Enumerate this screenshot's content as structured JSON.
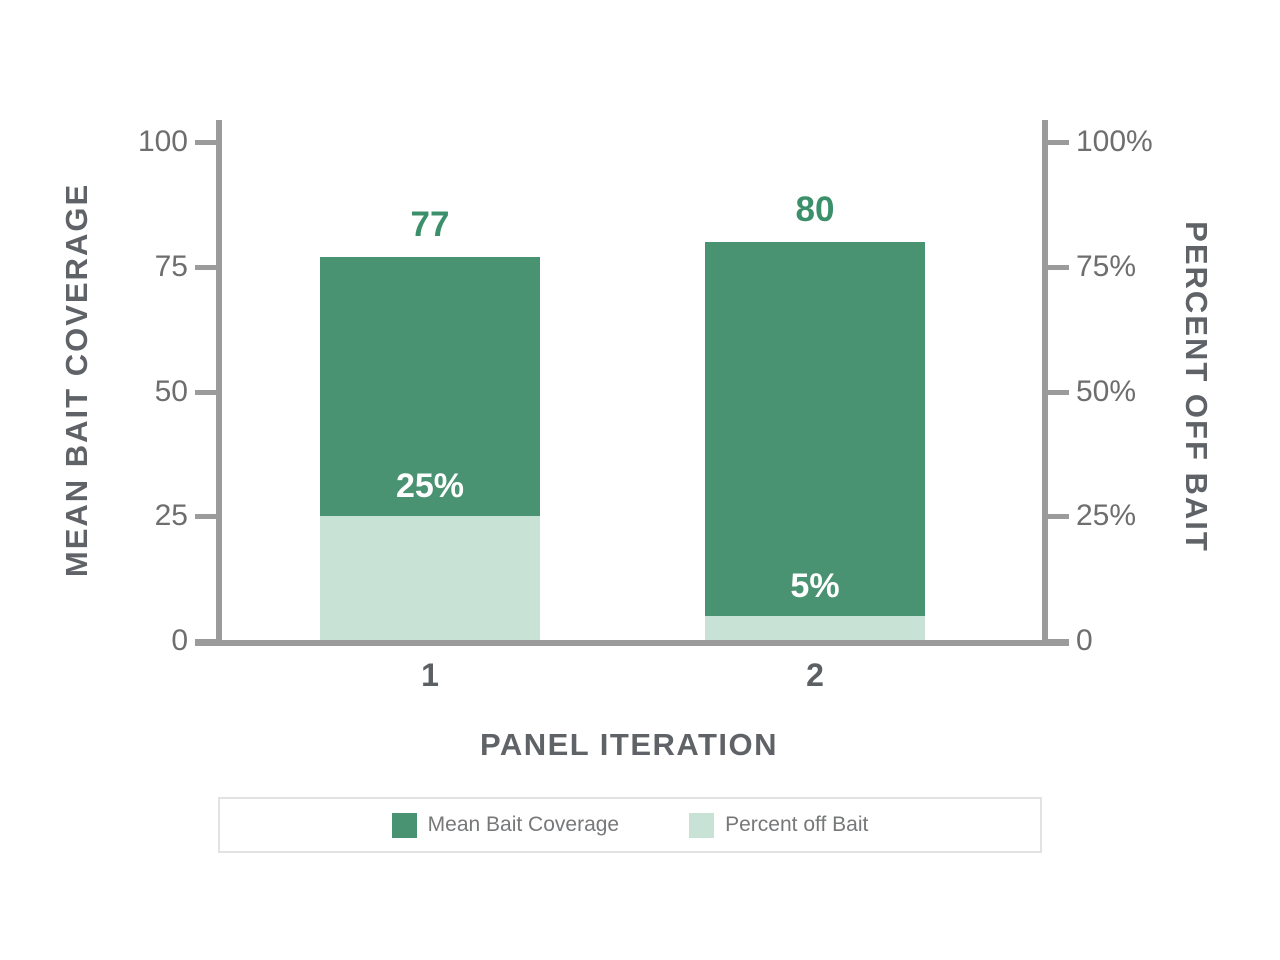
{
  "chart_data": {
    "type": "bar",
    "title": "",
    "categories": [
      "1",
      "2"
    ],
    "series": [
      {
        "name": "Mean Bait Coverage",
        "values": [
          77,
          80
        ],
        "color": "#4a9372",
        "axis": "left"
      },
      {
        "name": "Percent off Bait",
        "values": [
          25,
          5
        ],
        "color": "#c8e3d6",
        "axis": "right"
      }
    ],
    "bar_value_labels": [
      "77",
      "80"
    ],
    "overlay_value_labels": [
      "25%",
      "5%"
    ],
    "left_axis": {
      "title": "MEAN BAIT COVERAGE",
      "range": [
        0,
        100
      ],
      "tick_values": [
        0,
        25,
        50,
        75,
        100
      ],
      "tick_labels": [
        "0",
        "25",
        "50",
        "75",
        "100"
      ]
    },
    "right_axis": {
      "title": "PERCENT OFF BAIT",
      "range": [
        0,
        100
      ],
      "tick_values": [
        0,
        25,
        50,
        75,
        100
      ],
      "tick_labels": [
        "0",
        "25%",
        "50%",
        "75%",
        "100%"
      ]
    },
    "x_axis": {
      "title": "PANEL ITERATION"
    },
    "legend": {
      "position": "bottom",
      "entries": [
        {
          "label": "Mean Bait Coverage",
          "color": "#4a9372"
        },
        {
          "label": "Percent off Bait",
          "color": "#c8e3d6"
        }
      ]
    },
    "grid": false,
    "colors": {
      "bar_dark_green": "#4a9372",
      "bar_light_green": "#c8e3d6",
      "value_label_green": "#3c8f6b",
      "axis_line_gray": "#9b9b9b",
      "tick_text_gray": "#6e6e6e",
      "title_text_gray": "#5f6367",
      "legend_text_gray": "#76787a",
      "overlay_label_white": "#ffffff"
    }
  }
}
